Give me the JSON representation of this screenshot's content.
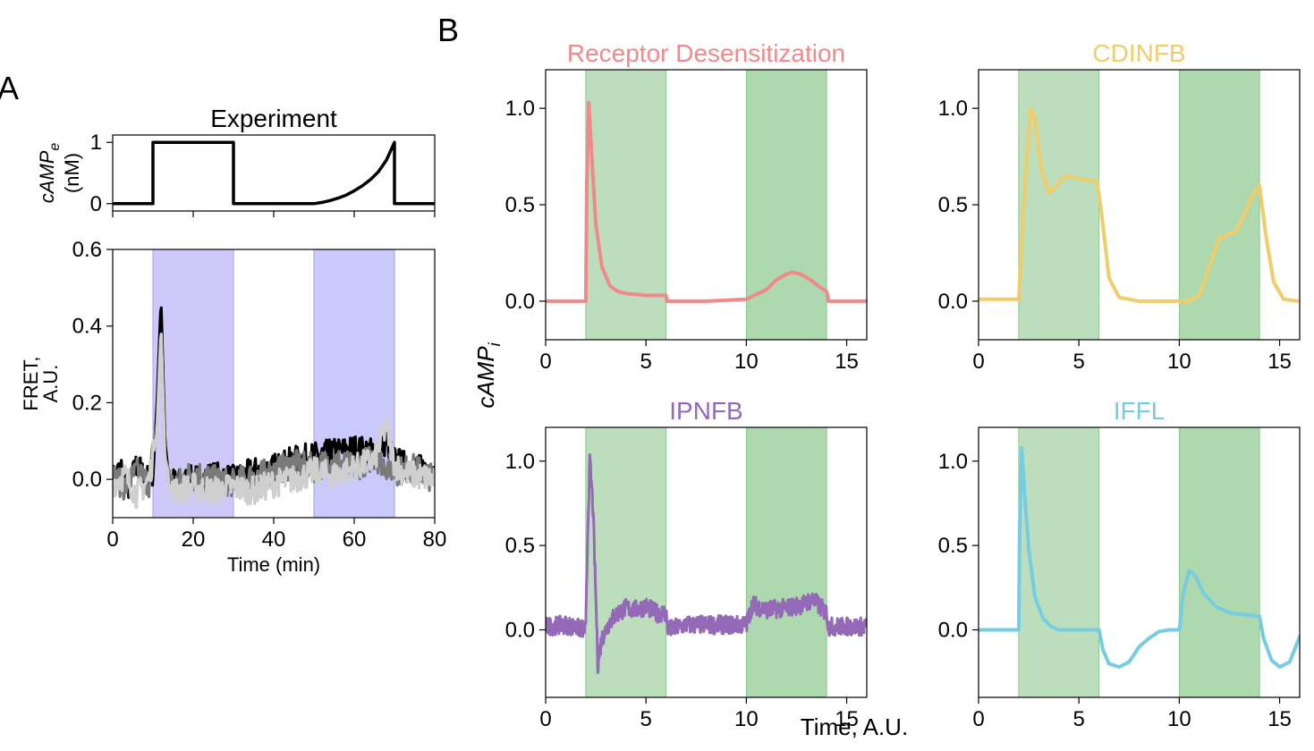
{
  "panel_labels": {
    "a": "A",
    "b": "B"
  },
  "colors": {
    "receptor": "#f08a8a",
    "cdinfb": "#f0cd6b",
    "ipnfb": "#9469b8",
    "iffl": "#76cde2",
    "green_shade": "#8cc78c",
    "purple_shade": "#a79cf5",
    "blue_shade": "#9c9cf7",
    "exp_black": "#000000",
    "exp_gray": "#7a7a7a",
    "exp_light": "#cfcfcf"
  },
  "shared_labels": {
    "ylabel_b": "cAMP_i",
    "xlabel_b": "Time, A.U."
  },
  "chart_data": [
    {
      "id": "stimulus",
      "type": "line",
      "title": "Experiment",
      "ylabel_main": "cAMP",
      "ylabel_sub": "e",
      "ylabel_unit": "(nM)",
      "xlim": [
        0,
        80
      ],
      "ylim": [
        -0.12,
        1.12
      ],
      "yticks": [
        0,
        1
      ],
      "ytick_labels": [
        "0",
        "1"
      ],
      "xticks": [
        0,
        20,
        40,
        60,
        80
      ],
      "series": [
        {
          "color_key": "exp_black",
          "x": [
            0,
            10,
            10,
            30,
            30,
            50,
            52,
            54,
            56,
            58,
            60,
            62,
            64,
            66,
            68,
            70,
            70,
            80
          ],
          "y": [
            0,
            0,
            1,
            1,
            0,
            0,
            0.02,
            0.05,
            0.09,
            0.14,
            0.21,
            0.29,
            0.39,
            0.52,
            0.71,
            1.0,
            0,
            0
          ]
        }
      ]
    },
    {
      "id": "fret",
      "type": "line",
      "xlabel": "Time (min)",
      "ylabel": "FRET,\nA.U.",
      "xlim": [
        0,
        80
      ],
      "ylim": [
        -0.1,
        0.6
      ],
      "xticks": [
        0,
        20,
        40,
        60,
        80
      ],
      "xtick_labels": [
        "0",
        "20",
        "40",
        "60",
        "80"
      ],
      "yticks": [
        0.0,
        0.2,
        0.4,
        0.6
      ],
      "ytick_labels": [
        "0.0",
        "0.2",
        "0.4",
        "0.6"
      ],
      "shaded": [
        {
          "x0": 10,
          "x1": 30,
          "color_key": "purple_shade"
        },
        {
          "x0": 50,
          "x1": 70,
          "color_key": "blue_shade"
        }
      ],
      "series": [
        {
          "color_key": "exp_black",
          "x": [
            0,
            2,
            4,
            6,
            8,
            10,
            11,
            12,
            13,
            14,
            16,
            20,
            25,
            30,
            35,
            40,
            45,
            50,
            55,
            60,
            65,
            68,
            70,
            72,
            75,
            80
          ],
          "y": [
            0.0,
            0.03,
            -0.02,
            0.04,
            0.0,
            0.01,
            0.2,
            0.47,
            0.1,
            0.0,
            -0.01,
            0.0,
            0.01,
            0.0,
            0.02,
            0.03,
            0.05,
            0.06,
            0.07,
            0.08,
            0.07,
            0.1,
            0.05,
            0.04,
            0.03,
            0.02
          ]
        },
        {
          "color_key": "exp_gray",
          "x": [
            0,
            3,
            6,
            9,
            11,
            12,
            13,
            15,
            20,
            25,
            30,
            35,
            40,
            45,
            50,
            55,
            60,
            65,
            70,
            75,
            80
          ],
          "y": [
            0.01,
            -0.02,
            0.02,
            -0.01,
            0.15,
            0.4,
            0.06,
            -0.02,
            0.02,
            0.0,
            -0.01,
            0.01,
            0.02,
            0.04,
            0.03,
            0.05,
            0.03,
            0.06,
            0.02,
            0.03,
            0.0
          ]
        },
        {
          "color_key": "exp_light",
          "x": [
            0,
            3,
            6,
            9,
            11,
            12,
            13,
            15,
            20,
            25,
            30,
            35,
            40,
            45,
            50,
            55,
            60,
            65,
            68,
            70,
            72,
            75,
            80
          ],
          "y": [
            -0.01,
            0.01,
            -0.04,
            0.0,
            0.12,
            0.4,
            0.05,
            -0.03,
            -0.02,
            -0.03,
            -0.02,
            -0.03,
            -0.01,
            0.0,
            0.02,
            0.01,
            0.03,
            0.05,
            0.14,
            0.04,
            0.02,
            0.01,
            0.0
          ]
        }
      ]
    },
    {
      "id": "receptor",
      "type": "line",
      "title": "Receptor Desensitization",
      "color_key": "receptor",
      "xlim": [
        0,
        16
      ],
      "ylim": [
        -0.2,
        1.2
      ],
      "xticks": [
        0,
        5,
        10,
        15
      ],
      "yticks": [
        0.0,
        0.5,
        1.0
      ],
      "ytick_labels": [
        "0.0",
        "0.5",
        "1.0"
      ],
      "shaded": [
        {
          "x0": 2,
          "x1": 6
        },
        {
          "x0": 10,
          "x1": 14
        }
      ],
      "x": [
        0,
        2,
        2.05,
        2.15,
        2.3,
        2.5,
        2.8,
        3.2,
        3.6,
        4,
        5,
        6,
        6.05,
        8,
        10,
        11,
        11.5,
        12,
        12.3,
        12.7,
        13.2,
        13.7,
        14,
        14.1,
        16
      ],
      "y": [
        0,
        0,
        0.6,
        1.03,
        0.75,
        0.4,
        0.18,
        0.08,
        0.05,
        0.04,
        0.03,
        0.03,
        0.0,
        0.0,
        0.01,
        0.06,
        0.11,
        0.14,
        0.15,
        0.14,
        0.11,
        0.07,
        0.05,
        0.0,
        0.0
      ]
    },
    {
      "id": "cdinfb",
      "type": "line",
      "title": "CDINFB",
      "color_key": "cdinfb",
      "xlim": [
        0,
        16
      ],
      "ylim": [
        -0.2,
        1.2
      ],
      "xticks": [
        0,
        5,
        10,
        15
      ],
      "yticks": [
        0.0,
        0.5,
        1.0
      ],
      "ytick_labels": [
        "0.0",
        "0.5",
        "1.0"
      ],
      "shaded": [
        {
          "x0": 2,
          "x1": 6
        },
        {
          "x0": 10,
          "x1": 14
        }
      ],
      "x": [
        0,
        1,
        2,
        2.3,
        2.6,
        2.8,
        3.1,
        3.5,
        3.9,
        4.3,
        4.8,
        5.3,
        5.9,
        6.1,
        6.5,
        7,
        8,
        9,
        10,
        10.4,
        11,
        11.5,
        12,
        12.3,
        12.8,
        13.2,
        13.6,
        14,
        14.3,
        14.7,
        15.2,
        16
      ],
      "y": [
        0.01,
        0.01,
        0.01,
        0.6,
        1.0,
        0.95,
        0.7,
        0.56,
        0.6,
        0.65,
        0.64,
        0.63,
        0.62,
        0.48,
        0.12,
        0.02,
        0.0,
        0.0,
        0.0,
        0.0,
        0.03,
        0.18,
        0.33,
        0.34,
        0.36,
        0.44,
        0.54,
        0.6,
        0.35,
        0.1,
        0.01,
        0.0
      ]
    },
    {
      "id": "ipnfb",
      "type": "line",
      "title": "IPNFB",
      "color_key": "ipnfb",
      "noisy": true,
      "xlim": [
        0,
        16
      ],
      "ylim": [
        -0.4,
        1.2
      ],
      "xticks": [
        0,
        5,
        10,
        15
      ],
      "xtick_labels": [
        "0",
        "5",
        "10",
        "15"
      ],
      "yticks": [
        0.0,
        0.5,
        1.0
      ],
      "ytick_labels": [
        "0.0",
        "0.5",
        "1.0"
      ],
      "shaded": [
        {
          "x0": 2,
          "x1": 6
        },
        {
          "x0": 10,
          "x1": 14
        }
      ],
      "x": [
        0,
        1,
        2,
        2.1,
        2.2,
        2.35,
        2.5,
        2.6,
        2.8,
        3.2,
        3.6,
        4,
        4.5,
        5,
        5.5,
        6,
        6.1,
        7,
        8,
        9,
        10,
        10.3,
        11,
        12,
        12.8,
        13.3,
        14,
        14.1,
        15,
        16
      ],
      "y": [
        0.02,
        0.03,
        0.0,
        0.6,
        1.0,
        0.75,
        0.2,
        -0.2,
        -0.05,
        0.05,
        0.1,
        0.13,
        0.12,
        0.14,
        0.1,
        0.1,
        0.0,
        0.03,
        0.03,
        0.03,
        0.03,
        0.15,
        0.12,
        0.13,
        0.15,
        0.18,
        0.1,
        0.02,
        0.02,
        0.02
      ]
    },
    {
      "id": "iffl",
      "type": "line",
      "title": "IFFL",
      "color_key": "iffl",
      "xlim": [
        0,
        16
      ],
      "ylim": [
        -0.4,
        1.2
      ],
      "xticks": [
        0,
        5,
        10,
        15
      ],
      "xtick_labels": [
        "0",
        "5",
        "10",
        "15"
      ],
      "yticks": [
        0.0,
        0.5,
        1.0
      ],
      "ytick_labels": [
        "0.0",
        "0.5",
        "1.0"
      ],
      "shaded": [
        {
          "x0": 2,
          "x1": 6
        },
        {
          "x0": 10,
          "x1": 14
        }
      ],
      "x": [
        0,
        1,
        2,
        2.05,
        2.15,
        2.3,
        2.5,
        2.8,
        3.2,
        3.6,
        4,
        5,
        6,
        6.2,
        6.5,
        7,
        7.5,
        8,
        8.5,
        9,
        9.5,
        10,
        10.2,
        10.5,
        10.8,
        11.2,
        11.8,
        12.5,
        13.3,
        14,
        14.2,
        14.6,
        15,
        15.5,
        16
      ],
      "y": [
        0,
        0,
        0,
        0.6,
        1.08,
        0.8,
        0.48,
        0.2,
        0.07,
        0.02,
        0.0,
        0.0,
        0.0,
        -0.12,
        -0.2,
        -0.22,
        -0.19,
        -0.1,
        -0.05,
        -0.01,
        0.0,
        0.0,
        0.22,
        0.35,
        0.32,
        0.22,
        0.14,
        0.1,
        0.09,
        0.08,
        -0.05,
        -0.18,
        -0.22,
        -0.19,
        -0.04
      ]
    }
  ]
}
